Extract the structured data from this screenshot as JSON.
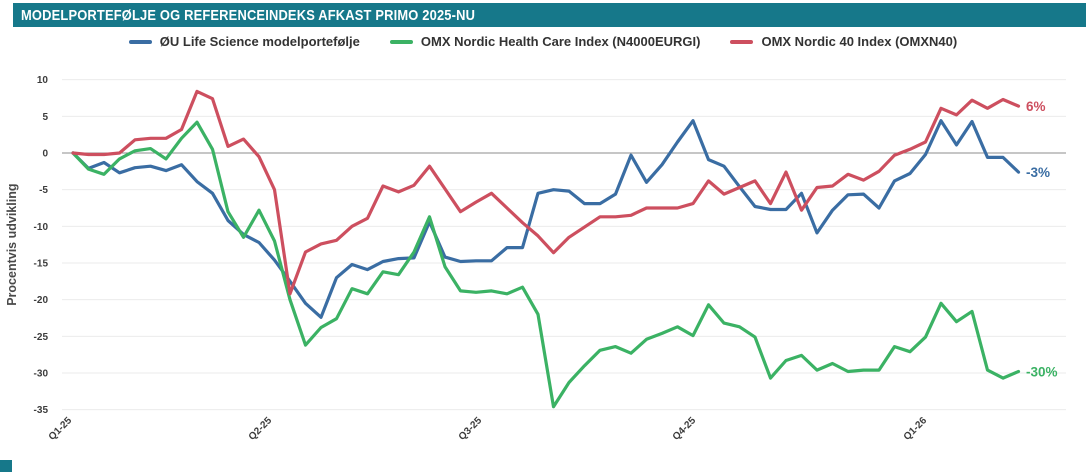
{
  "title": "MODELPORTEFØLJE OG REFERENCEINDEKS AFKAST PRIMO 2025-NU",
  "colors": {
    "header_bg": "#16788a",
    "blue": "#3a6da3",
    "green": "#3bb264",
    "red": "#cd4f5f",
    "grid": "#ebebeb",
    "zero_line": "#8c8c8c",
    "tick_text": "#3c3c3c"
  },
  "chart_data": {
    "type": "line",
    "title": "MODELPORTEFØLJE OG REFERENCEINDEKS AFKAST PRIMO 2025-NU",
    "ylabel": "Procentvis udvikling",
    "xlabel": "",
    "ylim": [
      -35,
      10
    ],
    "grid": true,
    "legend_position": "top",
    "y_ticks": [
      10,
      5,
      0,
      -5,
      -10,
      -15,
      -20,
      -25,
      -30,
      -35
    ],
    "x_tick_labels": [
      "Q1-25",
      "Q2-25",
      "Q3-25",
      "Q4-25",
      "Q1-26"
    ],
    "x_unit": "week",
    "series": [
      {
        "name": "ØU Life Science modelportefølje",
        "color": "#3a6da3",
        "end_label": "-3%",
        "values": [
          0,
          -2.1,
          -1.3,
          -2.7,
          -2,
          -1.8,
          -2.4,
          -1.6,
          -3.9,
          -5.5,
          -9.2,
          -11.1,
          -12.2,
          -14.6,
          -17.5,
          -20.5,
          -22.4,
          -17,
          -15.2,
          -15.9,
          -14.8,
          -14.4,
          -14.3,
          -9.4,
          -14.2,
          -14.8,
          -14.7,
          -14.7,
          -12.9,
          -12.9,
          -5.5,
          -5,
          -5.2,
          -6.9,
          -6.9,
          -5.6,
          -0.3,
          -4,
          -1.6,
          1.5,
          4.4,
          -0.9,
          -1.8,
          -4.6,
          -7.3,
          -7.7,
          -7.7,
          -5.5,
          -10.9,
          -7.8,
          -5.7,
          -5.6,
          -7.5,
          -3.8,
          -2.8,
          -0.2,
          4.4,
          1.1,
          4.3,
          -0.6,
          -0.6,
          -2.6
        ]
      },
      {
        "name": "OMX Nordic Health Care Index (N4000EURGI)",
        "color": "#3bb264",
        "end_label": "-30%",
        "values": [
          0,
          -2.2,
          -2.9,
          -0.8,
          0.3,
          0.6,
          -0.8,
          2,
          4.2,
          0.5,
          -8,
          -11.5,
          -7.8,
          -12,
          -20,
          -26.2,
          -23.8,
          -22.6,
          -18.5,
          -19.2,
          -16.2,
          -16.6,
          -13.5,
          -8.7,
          -15.5,
          -18.8,
          -19,
          -18.8,
          -19.2,
          -18.3,
          -22,
          -34.6,
          -31.3,
          -29,
          -26.9,
          -26.4,
          -27.3,
          -25.4,
          -24.6,
          -23.7,
          -24.9,
          -20.7,
          -23.2,
          -23.7,
          -25.1,
          -30.7,
          -28.3,
          -27.6,
          -29.6,
          -28.7,
          -29.8,
          -29.6,
          -29.6,
          -26.4,
          -27.1,
          -25.1,
          -20.5,
          -23,
          -21.6,
          -29.6,
          -30.7,
          -29.8
        ]
      },
      {
        "name": "OMX Nordic 40 Index (OMXN40)",
        "color": "#cd4f5f",
        "end_label": "6%",
        "values": [
          0,
          -0.2,
          -0.2,
          0,
          1.8,
          2,
          2,
          3.2,
          8.4,
          7.4,
          0.9,
          1.9,
          -0.5,
          -5,
          -19.2,
          -13.5,
          -12.4,
          -11.9,
          -10,
          -8.9,
          -4.5,
          -5.3,
          -4.4,
          -1.8,
          -4.9,
          -8,
          -6.7,
          -5.5,
          -7.5,
          -9.5,
          -11.3,
          -13.6,
          -11.5,
          -10.1,
          -8.7,
          -8.7,
          -8.5,
          -7.5,
          -7.5,
          -7.5,
          -6.9,
          -3.8,
          -5.6,
          -4.7,
          -3.8,
          -6.9,
          -2.6,
          -7.8,
          -4.7,
          -4.5,
          -2.9,
          -3.7,
          -2.5,
          -0.3,
          0.5,
          1.5,
          6.1,
          5.2,
          7.2,
          6.1,
          7.3,
          6.4
        ]
      }
    ]
  }
}
